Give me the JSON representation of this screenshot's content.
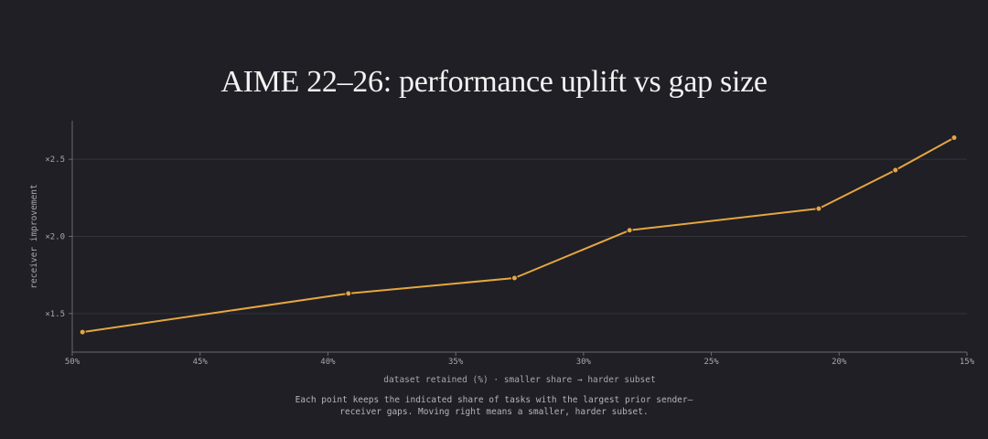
{
  "chart_data": {
    "type": "line",
    "title": "AIME 22–26: performance uplift vs gap size",
    "xlabel": "dataset retained (%) · smaller share → harder subset",
    "ylabel": "receiver improvement",
    "x_reversed": true,
    "xlim": [
      50,
      15
    ],
    "ylim": [
      1.25,
      2.75
    ],
    "x_ticks": [
      {
        "value": 50,
        "label": "50%"
      },
      {
        "value": 45,
        "label": "45%"
      },
      {
        "value": 40,
        "label": "40%"
      },
      {
        "value": 35,
        "label": "35%"
      },
      {
        "value": 30,
        "label": "30%"
      },
      {
        "value": 25,
        "label": "25%"
      },
      {
        "value": 20,
        "label": "20%"
      },
      {
        "value": 15,
        "label": "15%"
      }
    ],
    "y_ticks": [
      {
        "value": 1.5,
        "label": "×1.5"
      },
      {
        "value": 2.0,
        "label": "×2.0"
      },
      {
        "value": 2.5,
        "label": "×2.5"
      }
    ],
    "grid": "horizontal",
    "series": [
      {
        "color": "#e6a640",
        "points": [
          {
            "x": 49.6,
            "y": 1.38
          },
          {
            "x": 39.2,
            "y": 1.63
          },
          {
            "x": 32.7,
            "y": 1.73
          },
          {
            "x": 28.2,
            "y": 2.04
          },
          {
            "x": 20.8,
            "y": 2.18
          },
          {
            "x": 17.8,
            "y": 2.43
          },
          {
            "x": 15.5,
            "y": 2.64
          }
        ]
      }
    ]
  },
  "caption": {
    "line1": "Each point keeps the indicated share of tasks with the largest prior sender–",
    "line2": "receiver gaps. Moving right means a smaller, harder subset."
  },
  "colors": {
    "background": "#1f1f25",
    "grid": "#35353d",
    "axis": "#6a6a72",
    "line": "#e6a640"
  }
}
